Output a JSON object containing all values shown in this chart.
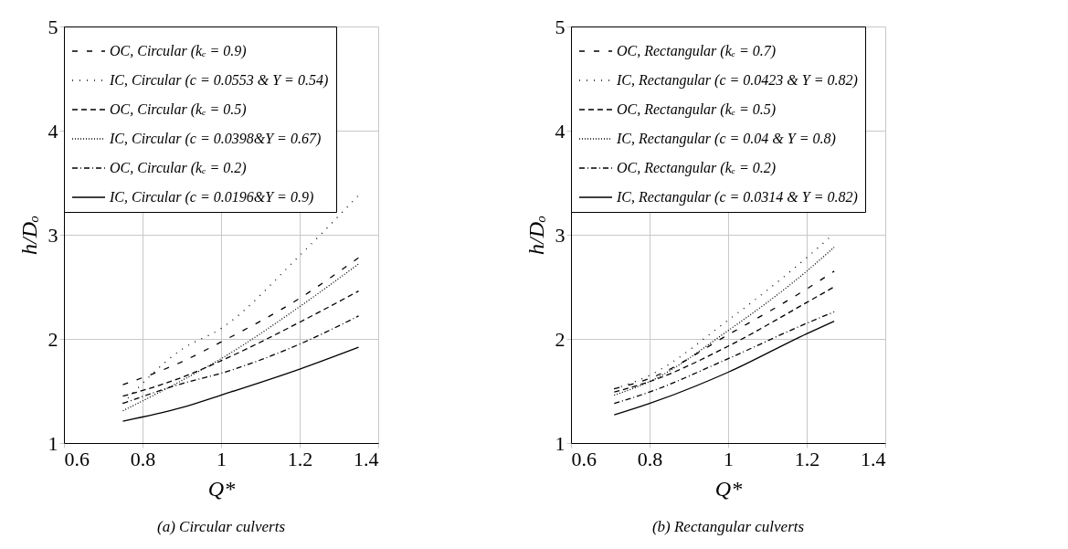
{
  "chart_data": [
    {
      "type": "line",
      "title": "(a) Circular culverts",
      "xlabel": "Q*",
      "ylabel": "h/Dₒ",
      "xlim": [
        0.6,
        1.4
      ],
      "ylim": [
        1,
        5
      ],
      "xticks": [
        0.6,
        0.8,
        1,
        1.2,
        1.4
      ],
      "yticks": [
        1,
        2,
        3,
        4,
        5
      ],
      "grid": true,
      "legend": "top left",
      "series": [
        {
          "name": "OC, Circular (kₑ = 0.9)",
          "color": "#000000",
          "line_style": "loosely dashed",
          "x": [
            0.75,
            0.9,
            1.0,
            1.2,
            1.35
          ],
          "values": [
            1.56,
            1.78,
            1.97,
            2.39,
            2.78
          ]
        },
        {
          "name": "IC, Circular (c = 0.0553 & Y = 0.54)",
          "color": "#000000",
          "line_style": "loosely dotted",
          "x": [
            0.75,
            0.9,
            1.0,
            1.2,
            1.35
          ],
          "values": [
            1.38,
            1.9,
            2.1,
            2.8,
            3.38
          ]
        },
        {
          "name": "OC, Circular (kₑ = 0.5)",
          "color": "#000000",
          "line_style": "dashed",
          "x": [
            0.75,
            0.9,
            1.0,
            1.2,
            1.35
          ],
          "values": [
            1.45,
            1.63,
            1.79,
            2.16,
            2.46
          ]
        },
        {
          "name": "IC, Circular (c = 0.0398&Y = 0.67)",
          "color": "#000000",
          "line_style": "dotted",
          "x": [
            0.75,
            0.9,
            1.0,
            1.2,
            1.35
          ],
          "values": [
            1.31,
            1.6,
            1.81,
            2.31,
            2.72
          ]
        },
        {
          "name": "OC, Circular (kₑ = 0.2)",
          "color": "#000000",
          "line_style": "dashdot",
          "x": [
            0.75,
            0.9,
            1.0,
            1.2,
            1.35
          ],
          "values": [
            1.38,
            1.57,
            1.67,
            1.95,
            2.22
          ]
        },
        {
          "name": "IC, Circular (c = 0.0196&Y = 0.9)",
          "color": "#000000",
          "line_style": "solid",
          "x": [
            0.75,
            0.9,
            1.0,
            1.2,
            1.35
          ],
          "values": [
            1.21,
            1.34,
            1.46,
            1.71,
            1.92
          ]
        }
      ]
    },
    {
      "type": "line",
      "title": "(b) Rectangular culverts",
      "xlabel": "Q*",
      "ylabel": "h/Dₒ",
      "xlim": [
        0.6,
        1.4
      ],
      "ylim": [
        1,
        5
      ],
      "xticks": [
        0.6,
        0.8,
        1,
        1.2,
        1.4
      ],
      "yticks": [
        1,
        2,
        3,
        4,
        5
      ],
      "grid": true,
      "legend": "top left",
      "series": [
        {
          "name": "OC, Rectangular (kₑ = 0.7)",
          "color": "#000000",
          "line_style": "loosely dashed",
          "x": [
            0.71,
            0.8,
            1.0,
            1.2,
            1.27
          ],
          "values": [
            1.52,
            1.62,
            2.04,
            2.48,
            2.65
          ]
        },
        {
          "name": "IC, Rectangular (c = 0.0423 & Y = 0.82)",
          "color": "#000000",
          "line_style": "loosely dotted",
          "x": [
            0.71,
            0.8,
            1.0,
            1.2,
            1.26
          ],
          "values": [
            1.52,
            1.65,
            2.18,
            2.78,
            2.98
          ]
        },
        {
          "name": "OC, Rectangular (kₑ = 0.5)",
          "color": "#000000",
          "line_style": "dashed",
          "x": [
            0.71,
            0.8,
            1.0,
            1.2,
            1.27
          ],
          "values": [
            1.49,
            1.59,
            1.93,
            2.35,
            2.5
          ]
        },
        {
          "name": "IC, Rectangular (c = 0.04 & Y = 0.8)",
          "color": "#000000",
          "line_style": "dotted",
          "x": [
            0.71,
            0.8,
            1.0,
            1.2,
            1.27
          ],
          "values": [
            1.46,
            1.59,
            2.08,
            2.65,
            2.88
          ]
        },
        {
          "name": "OC, Rectangular (kₑ = 0.2)",
          "color": "#000000",
          "line_style": "dashdot",
          "x": [
            0.71,
            0.8,
            1.0,
            1.2,
            1.27
          ],
          "values": [
            1.38,
            1.49,
            1.81,
            2.15,
            2.26
          ]
        },
        {
          "name": "IC, Rectangular (c = 0.0314 & Y = 0.82)",
          "color": "#000000",
          "line_style": "solid",
          "x": [
            0.71,
            0.8,
            1.0,
            1.2,
            1.27
          ],
          "values": [
            1.27,
            1.38,
            1.68,
            2.05,
            2.17
          ]
        }
      ]
    }
  ]
}
